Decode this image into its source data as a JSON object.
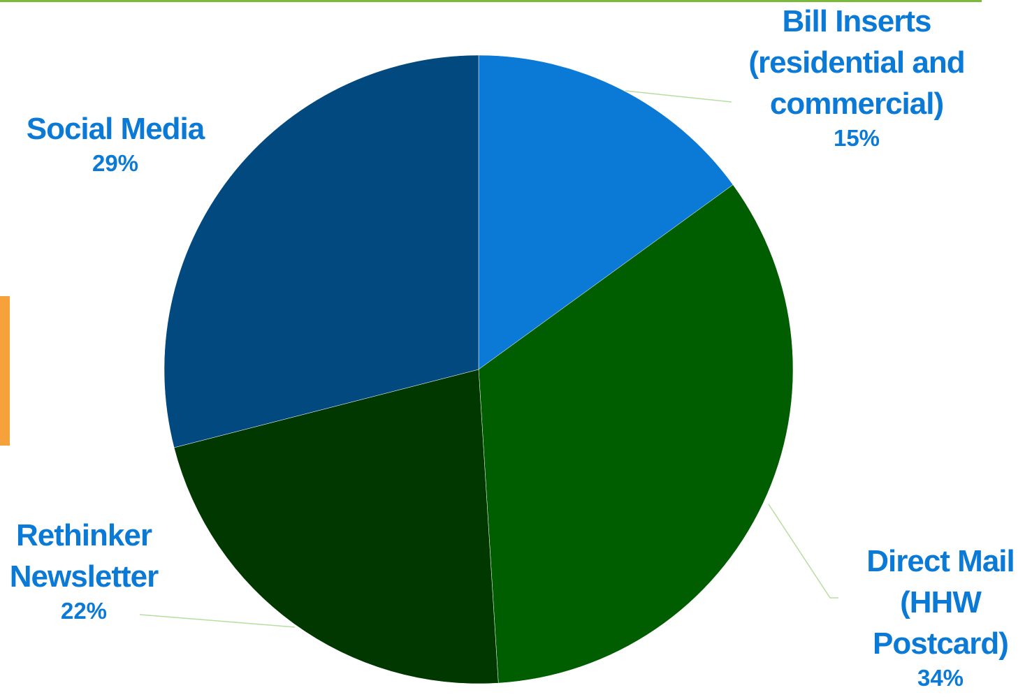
{
  "chart_data": {
    "type": "pie",
    "title": "",
    "slices": [
      {
        "label": "Bill Inserts (residential and commercial)",
        "value": 15,
        "value_label": "15%",
        "color": "#0a7ad6"
      },
      {
        "label": "Direct Mail (HHW Postcard)",
        "value": 34,
        "value_label": "34%",
        "color": "#005e00"
      },
      {
        "label": "Rethinker Newsletter",
        "value": 22,
        "value_label": "22%",
        "color": "#003800"
      },
      {
        "label": "Social Media",
        "value": 29,
        "value_label": "29%",
        "color": "#01497f"
      }
    ],
    "legend": "none",
    "data_labels": "outside with leader lines"
  },
  "labels": {
    "bill": {
      "name": "Bill Inserts\n(residential and\ncommercial)",
      "pct": "15%"
    },
    "direct": {
      "name": "Direct Mail\n(HHW\nPostcard)",
      "pct": "34%"
    },
    "reth": {
      "name": "Rethinker\nNewsletter",
      "pct": "22%"
    },
    "social": {
      "name": "Social Media",
      "pct": "29%"
    }
  },
  "colors": {
    "accent_green": "#7cbb3a",
    "accent_orange": "#f7a13a",
    "label_blue": "#0a7ad6",
    "leader_line": "#b7dea0"
  }
}
